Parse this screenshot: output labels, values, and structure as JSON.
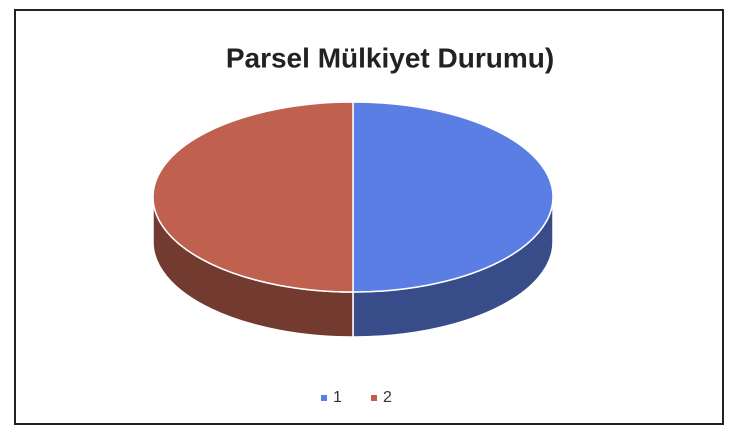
{
  "chart_data": {
    "type": "pie",
    "title": "Parsel Mülkiyet Durumu)",
    "categories": [
      "1",
      "2"
    ],
    "values": [
      50,
      50
    ],
    "colors": [
      "#5b7ee5",
      "#c0604e"
    ],
    "legend": "bottom"
  }
}
